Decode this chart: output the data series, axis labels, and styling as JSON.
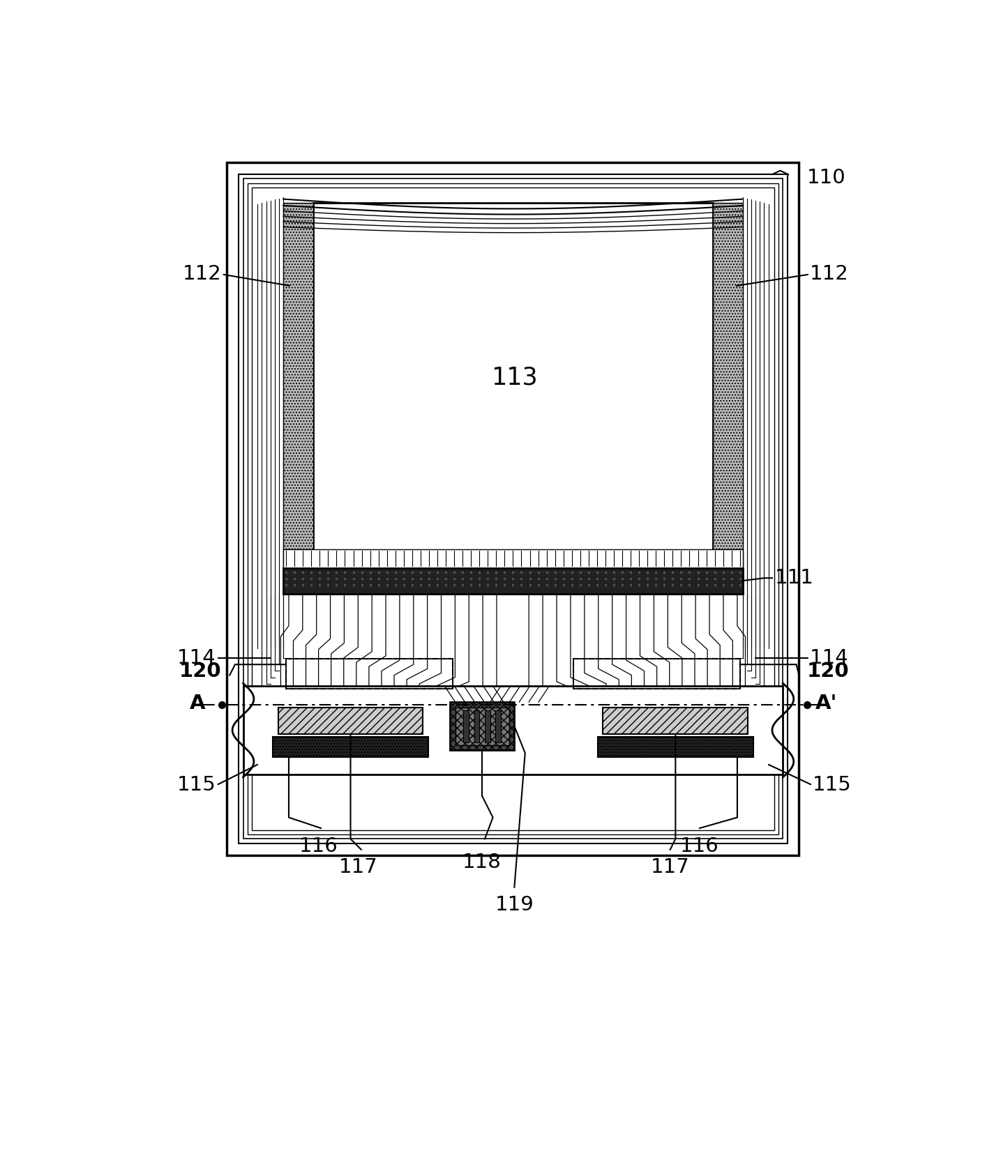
{
  "fig_width": 14.35,
  "fig_height": 16.87,
  "dpi": 100,
  "bg_color": "#ffffff",
  "black": "#000000",
  "dark_fill": "#222222",
  "mid_fill": "#666666",
  "light_fill": "#aaaaaa",
  "dot_fill": "#bbbbbb",
  "hatch_fill": "#999999"
}
